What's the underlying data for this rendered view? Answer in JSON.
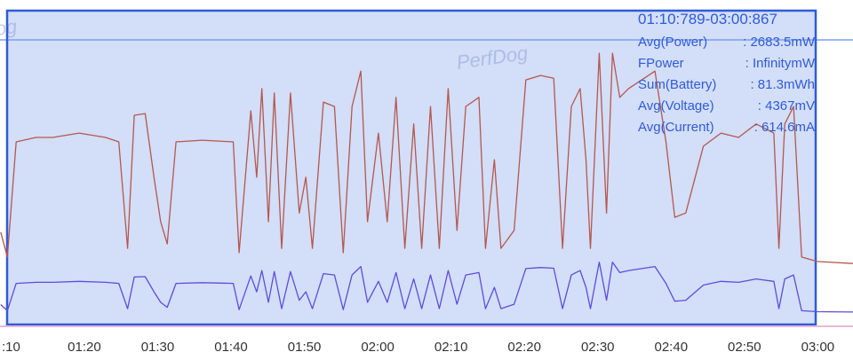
{
  "chart_data": {
    "type": "line",
    "x": [
      68.6,
      69.5,
      70.7,
      73.4,
      75.7,
      79.3,
      82.9,
      84.7,
      85.9,
      86.8,
      88.3,
      89.5,
      90.4,
      91.3,
      92.5,
      96.1,
      100.3,
      101.1,
      102.7,
      103.5,
      104.2,
      105.1,
      105.9,
      106.9,
      108.1,
      109.3,
      110.2,
      111.1,
      112.6,
      114.1,
      115.3,
      116.5,
      117.7,
      118.6,
      120.1,
      121.3,
      122.5,
      123.7,
      124.9,
      126.0,
      127.2,
      128.4,
      129.6,
      130.8,
      132.0,
      133.8,
      134.7,
      135.9,
      136.8,
      138.6,
      140.2,
      142.2,
      144.0,
      145.2,
      146.4,
      147.6,
      148.4,
      149.0,
      150.2,
      151.2,
      152.0,
      153.0,
      154.2,
      156.0,
      157.8,
      159.3,
      160.5,
      162.0,
      164.4,
      166.8,
      169.2,
      171.6,
      174.0,
      174.7,
      175.5,
      176.7,
      177.8,
      179.9,
      184.8
    ],
    "series": [
      {
        "color": "#b5574f",
        "values": [
          31.1,
          23.7,
          57.9,
          59.2,
          59.2,
          60.5,
          59.2,
          57.9,
          26.3,
          65.8,
          66.3,
          47.4,
          34.2,
          27.6,
          57.9,
          58.4,
          57.9,
          25,
          67.1,
          47.4,
          73.7,
          34.2,
          72.4,
          26.3,
          72.4,
          36.8,
          47.4,
          26.3,
          69.7,
          68.4,
          25,
          68.4,
          78.9,
          34.2,
          60.5,
          34.2,
          71.1,
          26.3,
          63.2,
          26.3,
          68.4,
          26.3,
          73.7,
          31.6,
          68.4,
          71.1,
          26.3,
          52.6,
          26.3,
          31.6,
          76.3,
          77.6,
          76.8,
          26.3,
          68.4,
          73.7,
          52.6,
          26.3,
          84.2,
          36.8,
          84.2,
          71.1,
          73.7,
          76.3,
          78.9,
          57.9,
          35.5,
          36.8,
          56.6,
          60.5,
          59.2,
          63.2,
          60.5,
          26.3,
          63.2,
          68.4,
          23.7,
          22.4,
          21.8
        ]
      },
      {
        "color": "#5a4fd8",
        "values": [
          9.6,
          7.8,
          15.9,
          16.2,
          16.2,
          16.5,
          16.2,
          15.9,
          8.4,
          17.8,
          17.9,
          13.4,
          10.3,
          8.8,
          15.9,
          16.1,
          15.9,
          8.1,
          18.1,
          13.4,
          19.7,
          10.3,
          19.4,
          8.4,
          19.4,
          10.9,
          13.4,
          8.4,
          18.8,
          18.4,
          8.1,
          18.4,
          20.9,
          10.3,
          16.5,
          10.3,
          19.1,
          8.4,
          17.2,
          8.4,
          18.4,
          8.4,
          19.7,
          9.7,
          18.4,
          19.1,
          8.4,
          14.7,
          8.4,
          9.7,
          20.3,
          20.6,
          20.4,
          8.4,
          18.4,
          19.7,
          14.7,
          8.4,
          22.2,
          10.9,
          22.2,
          19.1,
          19.7,
          20.3,
          20.9,
          15.9,
          10.6,
          10.9,
          15.4,
          16.5,
          16.2,
          17.2,
          16.5,
          8.4,
          17.2,
          18.4,
          7.8,
          7.5,
          7.4
        ]
      }
    ],
    "xlim": [
      68.5,
      184.8
    ],
    "xticks": [
      {
        "value": 70,
        "label": ":10"
      },
      {
        "value": 80,
        "label": "01:20"
      },
      {
        "value": 90,
        "label": "01:30"
      },
      {
        "value": 100,
        "label": "01:40"
      },
      {
        "value": 110,
        "label": "01:50"
      },
      {
        "value": 120,
        "label": "02:00"
      },
      {
        "value": 130,
        "label": "02:10"
      },
      {
        "value": 140,
        "label": "02:20"
      },
      {
        "value": 150,
        "label": "02:30"
      },
      {
        "value": 160,
        "label": "02:40"
      },
      {
        "value": 170,
        "label": "02:50"
      },
      {
        "value": 180,
        "label": "03:00"
      }
    ],
    "ylim": [
      0,
      100
    ],
    "watermarks": [
      "PerfDog",
      "PerfDog"
    ],
    "info": {
      "range": "01:10:789-03:00:867",
      "rows": [
        [
          "Avg(Power)",
          ": 2683.5mW"
        ],
        [
          "FPower",
          ": InfinitymW"
        ],
        [
          "Sum(Battery)",
          ": 81.3mWh"
        ],
        [
          "Avg(Voltage)",
          ": 4367mV"
        ],
        [
          "Avg(Current)",
          ": 614.6mA"
        ]
      ]
    }
  }
}
